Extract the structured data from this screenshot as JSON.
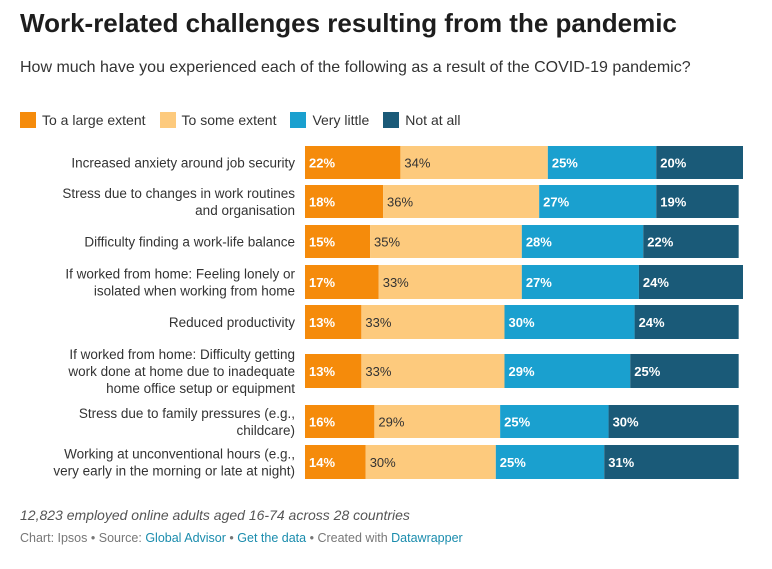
{
  "header": {
    "title": "Work-related challenges resulting from the pandemic",
    "subtitle": "How much have you experienced each of the following as a result of the COVID-19 pandemic?"
  },
  "legend": [
    {
      "label": "To a large extent",
      "color": "#f58b0b"
    },
    {
      "label": "To some extent",
      "color": "#fdca7d"
    },
    {
      "label": "Very little",
      "color": "#1aa0cf"
    },
    {
      "label": "Not at all",
      "color": "#1a5a78"
    }
  ],
  "chart_data": {
    "type": "bar",
    "orientation": "horizontal",
    "stacked": true,
    "title": "Work-related challenges resulting from the pandemic",
    "subtitle": "How much have you experienced each of the following as a result of the COVID-19 pandemic?",
    "categories": [
      [
        "Increased anxiety around job security"
      ],
      [
        "Stress due to changes in work routines",
        "and organisation"
      ],
      [
        "Difficulty finding a work-life balance"
      ],
      [
        "If worked from home: Feeling lonely or",
        "isolated when working from home"
      ],
      [
        "Reduced productivity"
      ],
      [
        "If worked from home: Difficulty getting",
        "work done at home due to inadequate",
        "home office setup or equipment"
      ],
      [
        "Stress due to family pressures (e.g.,",
        "childcare)"
      ],
      [
        "Working at unconventional hours (e.g.,",
        "very early in the morning or late at night)"
      ]
    ],
    "series": [
      {
        "name": "To a large extent",
        "color": "#f58b0b",
        "label_color": "#ffffff",
        "bold": true,
        "values": [
          22,
          18,
          15,
          17,
          13,
          13,
          16,
          14
        ]
      },
      {
        "name": "To some extent",
        "color": "#fdca7d",
        "label_color": "#333333",
        "bold": false,
        "values": [
          34,
          36,
          35,
          33,
          33,
          33,
          29,
          30
        ]
      },
      {
        "name": "Very little",
        "color": "#1aa0cf",
        "label_color": "#ffffff",
        "bold": true,
        "values": [
          25,
          27,
          28,
          27,
          30,
          29,
          25,
          25
        ]
      },
      {
        "name": "Not at all",
        "color": "#1a5a78",
        "label_color": "#ffffff",
        "bold": true,
        "values": [
          20,
          19,
          22,
          24,
          24,
          25,
          30,
          31
        ]
      }
    ],
    "value_suffix": "%",
    "xlim": [
      0,
      101
    ]
  },
  "footer": {
    "note": "12,823 employed online adults aged 16-74 across 28 countries",
    "chart_prefix": "Chart: Ipsos",
    "source_prefix": "Source:",
    "source_link": "Global Advisor",
    "data_link": "Get the data",
    "created_prefix": "Created with",
    "created_link": "Datawrapper",
    "separator": "•"
  }
}
